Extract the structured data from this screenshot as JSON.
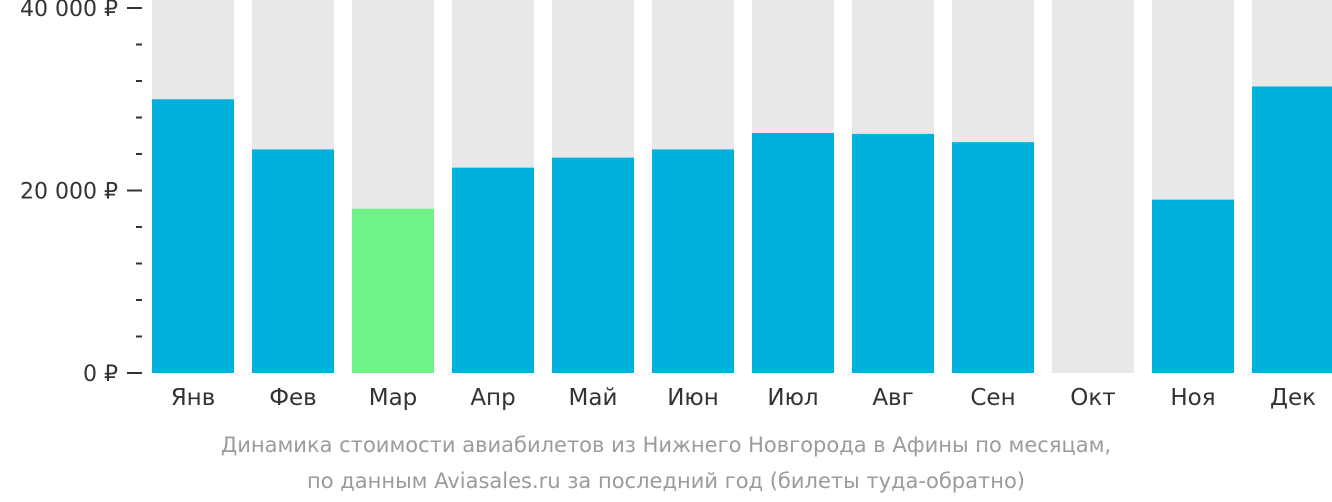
{
  "chart_data": {
    "type": "bar",
    "categories": [
      "Янв",
      "Фев",
      "Мар",
      "Апр",
      "Май",
      "Июн",
      "Июл",
      "Авг",
      "Сен",
      "Окт",
      "Ноя",
      "Дек"
    ],
    "values": [
      30000,
      24500,
      18000,
      22500,
      23600,
      24500,
      26300,
      26200,
      25300,
      null,
      19000,
      31400
    ],
    "highlight_index": 2,
    "ylim": [
      0,
      40000
    ],
    "yticks": [
      {
        "value": 0,
        "label": "0 ₽"
      },
      {
        "value": 20000,
        "label": "20 000 ₽"
      },
      {
        "value": 40000,
        "label": "40 000 ₽"
      }
    ],
    "minor_tick_step": 4000,
    "colors": {
      "bar": "#00b0dd",
      "highlight": "#6ef386",
      "background_bar": "#e8e8e8",
      "axis_text": "#333333",
      "caption_text": "#9b9b9b"
    },
    "caption_line1": "Динамика стоимости авиабилетов из Нижнего Новгорода в Афины по месяцам,",
    "caption_line2": "по данным Aviasales.ru за последний год (билеты туда-обратно)"
  }
}
